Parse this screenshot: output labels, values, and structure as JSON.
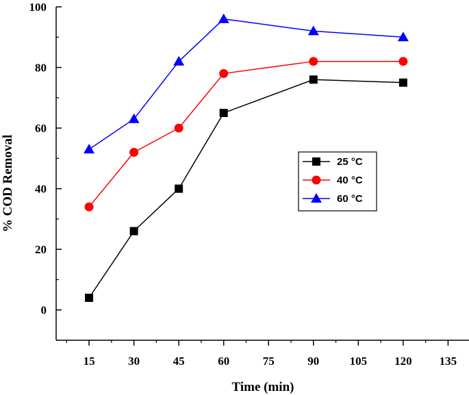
{
  "chart_data": {
    "type": "line",
    "title": "",
    "xlabel": "Time (min)",
    "ylabel": "% COD Removal",
    "xlim": [
      4,
      142
    ],
    "ylim": [
      -10,
      100
    ],
    "xticks": [
      15,
      30,
      45,
      60,
      75,
      90,
      105,
      120,
      135
    ],
    "yticks": [
      0,
      20,
      40,
      60,
      80,
      100
    ],
    "grid": false,
    "legend_position": "center-right",
    "series": [
      {
        "name": "25 °C",
        "color": "#000000",
        "marker": "square",
        "x": [
          15,
          30,
          45,
          60,
          90,
          120
        ],
        "values": [
          4,
          26,
          40,
          65,
          76,
          75
        ]
      },
      {
        "name": "40 °C",
        "color": "#ff0000",
        "marker": "circle",
        "x": [
          15,
          30,
          45,
          60,
          90,
          120
        ],
        "values": [
          34,
          52,
          60,
          78,
          82,
          82
        ]
      },
      {
        "name": "60 °C",
        "color": "#0000ff",
        "marker": "triangle",
        "x": [
          15,
          30,
          45,
          60,
          90,
          120
        ],
        "values": [
          53,
          63,
          82,
          96,
          92,
          90
        ]
      }
    ]
  }
}
